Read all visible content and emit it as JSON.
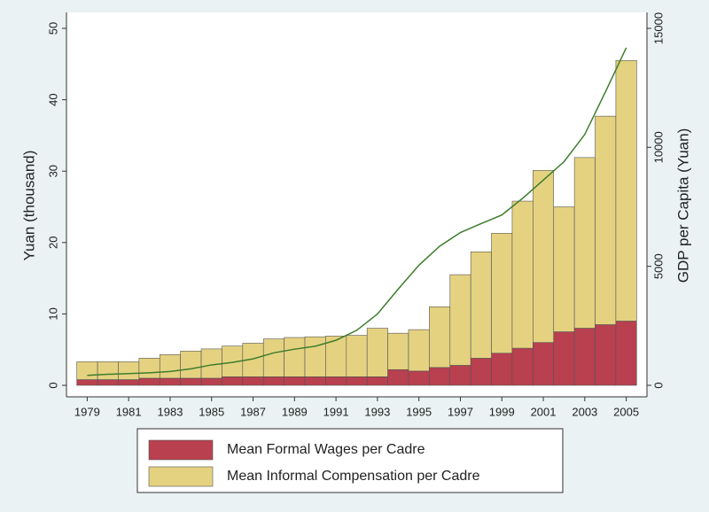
{
  "chart_data": {
    "type": "bar-line",
    "y_label": "Yuan (thousand)",
    "y2_label": "GDP per Capita (Yuan)",
    "x": [
      1979,
      1980,
      1981,
      1982,
      1983,
      1984,
      1985,
      1986,
      1987,
      1988,
      1989,
      1990,
      1991,
      1992,
      1993,
      1994,
      1995,
      1996,
      1997,
      1998,
      1999,
      2000,
      2001,
      2002,
      2003,
      2004,
      2005
    ],
    "xlim": [
      1978,
      2006
    ],
    "xticks": [
      1979,
      1981,
      1983,
      1985,
      1987,
      1989,
      1991,
      1993,
      1995,
      1997,
      1999,
      2001,
      2003,
      2005
    ],
    "ylim": [
      0,
      50
    ],
    "yticks": [
      0,
      10,
      20,
      30,
      40,
      50
    ],
    "y2lim": [
      0,
      15000
    ],
    "y2ticks": [
      0,
      5000,
      10000,
      15000
    ],
    "legend": "bottom",
    "series": [
      {
        "name": "Mean Formal Wages per Cadre",
        "color": "#b8404f",
        "kind": "bar",
        "values": [
          0.8,
          0.8,
          0.8,
          1.0,
          1.0,
          1.0,
          1.0,
          1.2,
          1.2,
          1.2,
          1.2,
          1.2,
          1.2,
          1.2,
          1.2,
          2.2,
          2.0,
          2.5,
          2.8,
          3.8,
          4.5,
          5.2,
          6.0,
          7.5,
          8.0,
          8.5,
          9.0
        ]
      },
      {
        "name": "Mean Informal Compensation per Cadre",
        "color": "#e5d280",
        "kind": "bar",
        "values": [
          2.5,
          2.5,
          2.5,
          2.8,
          3.3,
          3.8,
          4.1,
          4.3,
          4.7,
          5.3,
          5.5,
          5.6,
          5.7,
          5.8,
          6.8,
          5.1,
          5.8,
          8.5,
          12.7,
          14.9,
          16.8,
          20.6,
          24.1,
          17.5,
          23.9,
          29.2,
          36.5
        ]
      },
      {
        "color": "#3d7d2c",
        "kind": "line",
        "axis": "y2",
        "values": [
          419,
          463,
          492,
          528,
          583,
          695,
          858,
          963,
          1112,
          1366,
          1519,
          1644,
          1893,
          2311,
          2998,
          4044,
          5046,
          5846,
          6420,
          6796,
          7159,
          7858,
          8622,
          9398,
          10542,
          12336,
          14185
        ]
      }
    ]
  }
}
